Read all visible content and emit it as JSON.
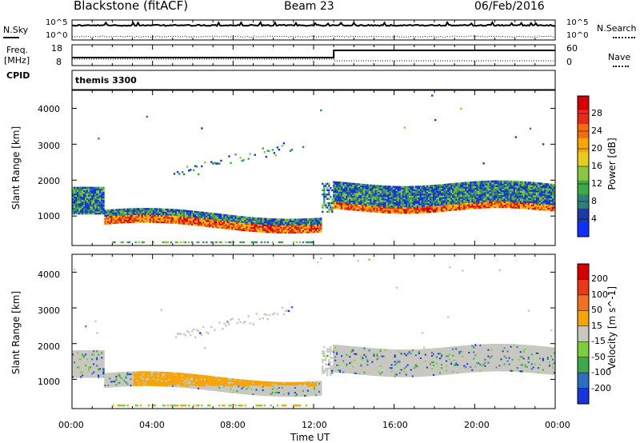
{
  "header": {
    "station": "Blackstone (fitACF)",
    "beam": "Beam 23",
    "date": "06/Feb/2016"
  },
  "noise_panel": {
    "left_label": "N.Sky",
    "right_label": "N.Search",
    "tick_top": "10^5",
    "tick_bottom": "10^0"
  },
  "freq_panel": {
    "left_label_1": "Freq.",
    "left_label_2": "[MHz]",
    "right_label": "Nave",
    "left_ticks": [
      "18",
      "8"
    ],
    "right_ticks": [
      "60",
      "0"
    ]
  },
  "cpid_panel": {
    "label": "CPID",
    "value": "themis 3300"
  },
  "x_axis": {
    "label": "Time UT",
    "ticks": [
      "00:00",
      "04:00",
      "08:00",
      "12:00",
      "16:00",
      "20:00",
      "00:00"
    ]
  },
  "chart_data": [
    {
      "type": "heatmap",
      "name": "power",
      "ylabel": "Slant Range [km]",
      "xlabel": "",
      "xlim": [
        0,
        24
      ],
      "ylim": [
        180,
        4500
      ],
      "yticks": [
        "1000",
        "2000",
        "3000",
        "4000"
      ],
      "colorbar": {
        "label": "Power [dB]",
        "ticks": [
          "4",
          "8",
          "12",
          "16",
          "20",
          "24",
          "28"
        ],
        "colors": [
          "#1030ff",
          "#1c3aa8",
          "#2f7f7a",
          "#3fa848",
          "#8cc63f",
          "#e6cc20",
          "#f5a50a",
          "#f36d10",
          "#e82a1a",
          "#d20000"
        ]
      }
    },
    {
      "type": "heatmap",
      "name": "velocity",
      "ylabel": "Slant Range [km]",
      "xlabel": "Time UT",
      "xlim": [
        0,
        24
      ],
      "ylim": [
        180,
        4500
      ],
      "yticks": [
        "1000",
        "2000",
        "3000",
        "4000"
      ],
      "colorbar": {
        "label": "Velocity [m s^-1]",
        "ticks": [
          "200",
          "100",
          "50",
          "15",
          "-15",
          "-50",
          "-100",
          "-200"
        ],
        "colors": [
          "#1536d9",
          "#2d6ec0",
          "#3fa84a",
          "#7fcc3c",
          "#c8c8c0",
          "#f5a50a",
          "#f37020",
          "#e83a1a",
          "#d60000"
        ]
      }
    }
  ]
}
